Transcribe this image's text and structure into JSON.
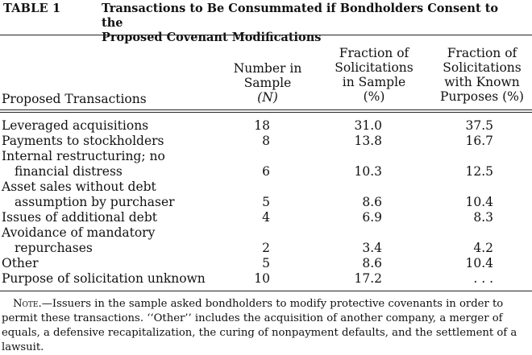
{
  "table": {
    "label": "TABLE 1",
    "title_line1": "Transactions to Be Consummated if Bondholders Consent to the",
    "title_line2": "Proposed Covenant Modifications",
    "headers": {
      "transactions": "Proposed Transactions",
      "number": [
        "Number in",
        "Sample",
        "(N)"
      ],
      "fraction_sample": [
        "Fraction of",
        "Solicitations",
        "in Sample",
        "(%)"
      ],
      "fraction_known": [
        "Fraction of",
        "Solicitations",
        "with Known",
        "Purposes (%)"
      ]
    },
    "rows": [
      {
        "label": "Leveraged acquisitions",
        "n": "18",
        "pct_sample": "31.0",
        "pct_known": "37.5"
      },
      {
        "label": "Payments to stockholders",
        "n": "8",
        "pct_sample": "13.8",
        "pct_known": "16.7"
      },
      {
        "label": "Internal restructuring; no",
        "n": "",
        "pct_sample": "",
        "pct_known": ""
      },
      {
        "label": "financial distress",
        "indent": true,
        "n": "6",
        "pct_sample": "10.3",
        "pct_known": "12.5"
      },
      {
        "label": "Asset sales without debt",
        "n": "",
        "pct_sample": "",
        "pct_known": ""
      },
      {
        "label": "assumption by purchaser",
        "indent": true,
        "n": "5",
        "pct_sample": "8.6",
        "pct_known": "10.4"
      },
      {
        "label": "Issues of additional debt",
        "n": "4",
        "pct_sample": "6.9",
        "pct_known": "8.3"
      },
      {
        "label": "Avoidance of mandatory",
        "n": "",
        "pct_sample": "",
        "pct_known": ""
      },
      {
        "label": "repurchases",
        "indent": true,
        "n": "2",
        "pct_sample": "3.4",
        "pct_known": "4.2"
      },
      {
        "label": "Other",
        "n": "5",
        "pct_sample": "8.6",
        "pct_known": "10.4"
      },
      {
        "label": "Purpose of solicitation unknown",
        "n": "10",
        "pct_sample": "17.2",
        "pct_known": ". . ."
      }
    ],
    "note_lead": "Note.",
    "note_text": "—Issuers in the sample asked bondholders to modify protective covenants in order to permit these transactions. ‘‘Other’’ includes the acquisition of another company, a merger of equals, a defensive recapitalization, the curing of nonpayment defaults, and the settlement of a lawsuit."
  }
}
